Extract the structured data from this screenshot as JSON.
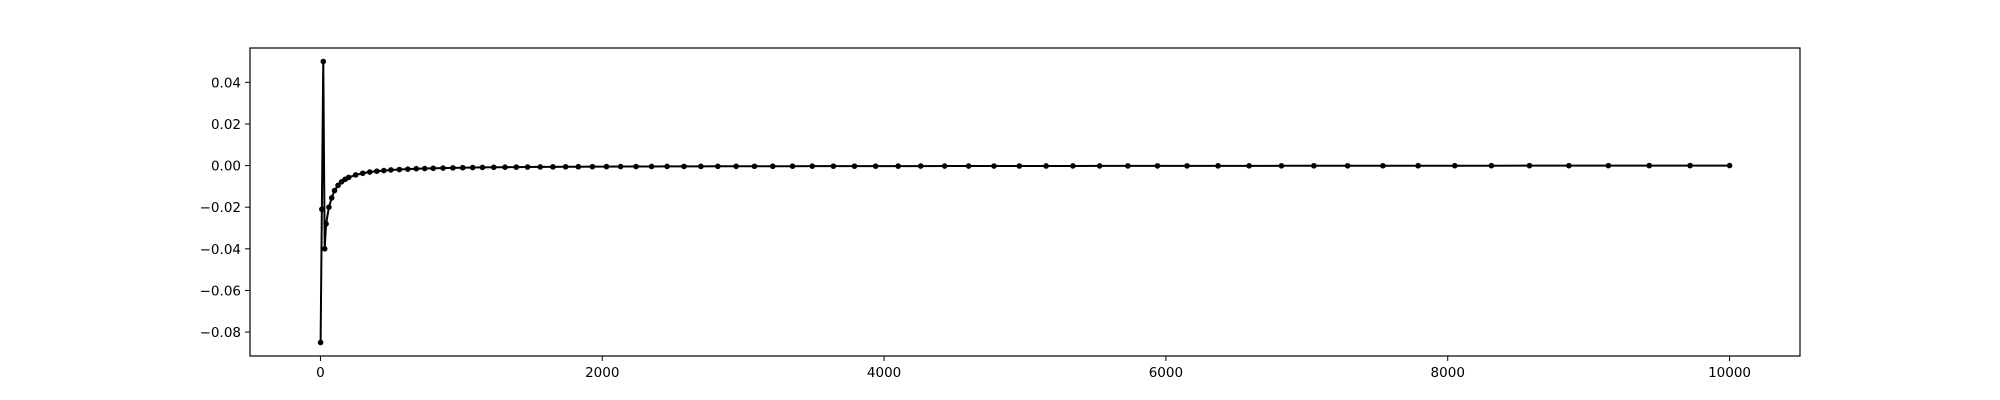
{
  "chart_data": {
    "type": "line",
    "title": "",
    "xlabel": "",
    "ylabel": "",
    "xlim": [
      -500,
      10500
    ],
    "ylim": [
      -0.0915,
      0.0565
    ],
    "grid": false,
    "legend": "none",
    "line_color": "#000000",
    "marker": "circle",
    "x_ticks": [
      0,
      2000,
      4000,
      6000,
      8000,
      10000
    ],
    "x_tick_labels": [
      "0",
      "2000",
      "4000",
      "6000",
      "8000",
      "10000"
    ],
    "y_ticks": [
      -0.08,
      -0.06,
      -0.04,
      -0.02,
      0.0,
      0.02,
      0.04
    ],
    "y_tick_labels": [
      "−0.08",
      "−0.06",
      "−0.04",
      "−0.02",
      "0.00",
      "0.02",
      "0.04"
    ],
    "series": [
      {
        "x": [
          1,
          10,
          20,
          30,
          40,
          60,
          80,
          100,
          125,
          150,
          175,
          200,
          250,
          300,
          350,
          400,
          450,
          500,
          560,
          620,
          680,
          740,
          800,
          870,
          940,
          1010,
          1080,
          1150,
          1230,
          1310,
          1390,
          1470,
          1560,
          1650,
          1740,
          1830,
          1930,
          2030,
          2130,
          2240,
          2350,
          2460,
          2580,
          2700,
          2820,
          2950,
          3080,
          3210,
          3350,
          3490,
          3640,
          3790,
          3940,
          4100,
          4260,
          4430,
          4600,
          4780,
          4960,
          5150,
          5340,
          5530,
          5730,
          5940,
          6150,
          6370,
          6590,
          6820,
          7050,
          7290,
          7540,
          7790,
          8050,
          8310,
          8580,
          8860,
          9140,
          9430,
          9720,
          10000
        ],
        "y": [
          -0.085,
          -0.021,
          0.05,
          -0.04,
          -0.028,
          -0.02,
          -0.0155,
          -0.012,
          -0.0095,
          -0.0078,
          -0.0066,
          -0.0057,
          -0.0045,
          -0.0037,
          -0.0031,
          -0.0027,
          -0.0024,
          -0.0021,
          -0.0019,
          -0.0017,
          -0.0015,
          -0.0014,
          -0.0013,
          -0.0012,
          -0.0011,
          -0.00102,
          -0.00095,
          -0.00089,
          -0.00083,
          -0.00078,
          -0.00073,
          -0.00069,
          -0.00065,
          -0.00061,
          -0.00058,
          -0.00055,
          -0.00052,
          -0.00049,
          -0.00047,
          -0.00045,
          -0.00043,
          -0.00041,
          -0.00039,
          -0.00037,
          -0.00035,
          -0.00034,
          -0.00032,
          -0.00031,
          -0.0003,
          -0.00029,
          -0.00028,
          -0.00027,
          -0.00026,
          -0.00025,
          -0.00024,
          -0.00023,
          -0.00022,
          -0.00021,
          -0.0002,
          -0.00019,
          -0.00018,
          -0.00017,
          -0.00016,
          -0.00015,
          -0.00014,
          -0.00013,
          -0.00012,
          -0.00011,
          -0.0001,
          -9e-05,
          -8e-05,
          -7e-05,
          -6e-05,
          -5e-05,
          -4e-05,
          -3e-05,
          -2e-05,
          -1e-05,
          -5e-06,
          0.0
        ]
      }
    ]
  }
}
